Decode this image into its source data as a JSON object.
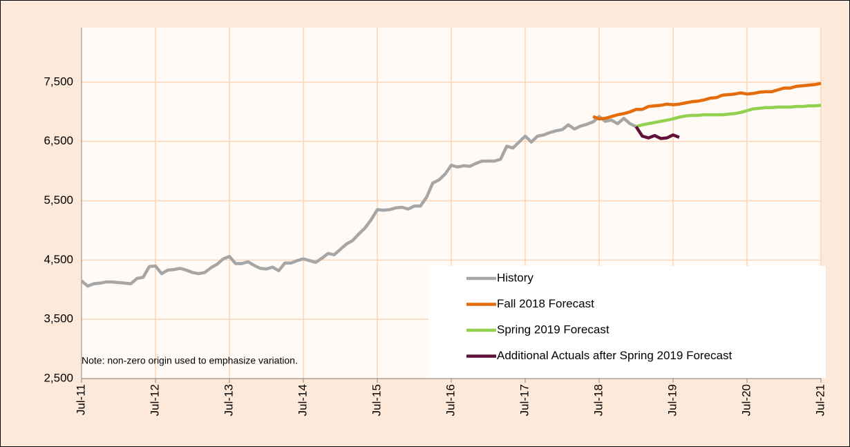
{
  "chart_data": {
    "type": "line",
    "annotation": "Note: non-zero origin used to emphasize variation.",
    "categories": [
      "Jul-11",
      null,
      null,
      null,
      null,
      null,
      null,
      null,
      null,
      null,
      null,
      null,
      "Jul-12",
      null,
      null,
      null,
      null,
      null,
      null,
      null,
      null,
      null,
      null,
      null,
      "Jul-13",
      null,
      null,
      null,
      null,
      null,
      null,
      null,
      null,
      null,
      null,
      null,
      "Jul-14",
      null,
      null,
      null,
      null,
      null,
      null,
      null,
      null,
      null,
      null,
      null,
      "Jul-15",
      null,
      null,
      null,
      null,
      null,
      null,
      null,
      null,
      null,
      null,
      null,
      "Jul-16",
      null,
      null,
      null,
      null,
      null,
      null,
      null,
      null,
      null,
      null,
      null,
      "Jul-17",
      null,
      null,
      null,
      null,
      null,
      null,
      null,
      null,
      null,
      null,
      null,
      "Jul-18",
      null,
      null,
      null,
      null,
      null,
      null,
      null,
      null,
      null,
      null,
      null,
      "Jul-19",
      null,
      null,
      null,
      null,
      null,
      null,
      null,
      null,
      null,
      null,
      null,
      "Jul-20",
      null,
      null,
      null,
      null,
      null,
      null,
      null,
      null,
      null,
      null,
      null,
      "Jul-21"
    ],
    "series": [
      {
        "name": "History",
        "color": "#a6a6a6",
        "values": [
          4150,
          4060,
          4100,
          4110,
          4130,
          4130,
          4120,
          4110,
          4100,
          4190,
          4210,
          4390,
          4400,
          4270,
          4330,
          4340,
          4360,
          4330,
          4290,
          4270,
          4290,
          4370,
          4430,
          4520,
          4560,
          4440,
          4440,
          4470,
          4410,
          4360,
          4350,
          4380,
          4320,
          4450,
          4450,
          4490,
          4520,
          4490,
          4460,
          4530,
          4610,
          4590,
          4680,
          4770,
          4830,
          4940,
          5040,
          5180,
          5350,
          5340,
          5350,
          5380,
          5390,
          5360,
          5410,
          5410,
          5560,
          5800,
          5850,
          5950,
          6100,
          6070,
          6090,
          6080,
          6130,
          6170,
          6170,
          6170,
          6200,
          6420,
          6390,
          6490,
          6590,
          6490,
          6590,
          6610,
          6650,
          6680,
          6700,
          6780,
          6710,
          6760,
          6790,
          6830,
          6920,
          6840,
          6860,
          6800,
          6890,
          6800,
          6750,
          null,
          null,
          null,
          null,
          null,
          null,
          null,
          null,
          null,
          null,
          null,
          null,
          null,
          null,
          null,
          null,
          null,
          null,
          null,
          null,
          null,
          null,
          null,
          null,
          null,
          null,
          null,
          null,
          null,
          null
        ]
      },
      {
        "name": "Fall 2018 Forecast",
        "color": "#e46c0a",
        "values": [
          null,
          null,
          null,
          null,
          null,
          null,
          null,
          null,
          null,
          null,
          null,
          null,
          null,
          null,
          null,
          null,
          null,
          null,
          null,
          null,
          null,
          null,
          null,
          null,
          null,
          null,
          null,
          null,
          null,
          null,
          null,
          null,
          null,
          null,
          null,
          null,
          null,
          null,
          null,
          null,
          null,
          null,
          null,
          null,
          null,
          null,
          null,
          null,
          null,
          null,
          null,
          null,
          null,
          null,
          null,
          null,
          null,
          null,
          null,
          null,
          null,
          null,
          null,
          null,
          null,
          null,
          null,
          null,
          null,
          null,
          null,
          null,
          null,
          null,
          null,
          null,
          null,
          null,
          null,
          null,
          null,
          null,
          null,
          6920,
          6880,
          6890,
          6920,
          6950,
          6970,
          7000,
          7040,
          7040,
          7090,
          7100,
          7110,
          7130,
          7120,
          7130,
          7150,
          7170,
          7180,
          7200,
          7230,
          7240,
          7280,
          7290,
          7300,
          7320,
          7300,
          7310,
          7330,
          7340,
          7340,
          7370,
          7400,
          7400,
          7430,
          7440,
          7450,
          7460,
          7480
        ]
      },
      {
        "name": "Spring 2019 Forecast",
        "color": "#92d050",
        "values": [
          null,
          null,
          null,
          null,
          null,
          null,
          null,
          null,
          null,
          null,
          null,
          null,
          null,
          null,
          null,
          null,
          null,
          null,
          null,
          null,
          null,
          null,
          null,
          null,
          null,
          null,
          null,
          null,
          null,
          null,
          null,
          null,
          null,
          null,
          null,
          null,
          null,
          null,
          null,
          null,
          null,
          null,
          null,
          null,
          null,
          null,
          null,
          null,
          null,
          null,
          null,
          null,
          null,
          null,
          null,
          null,
          null,
          null,
          null,
          null,
          null,
          null,
          null,
          null,
          null,
          null,
          null,
          null,
          null,
          null,
          null,
          null,
          null,
          null,
          null,
          null,
          null,
          null,
          null,
          null,
          null,
          null,
          null,
          null,
          null,
          null,
          null,
          null,
          null,
          null,
          6750,
          6780,
          6800,
          6820,
          6840,
          6860,
          6880,
          6910,
          6930,
          6940,
          6940,
          6950,
          6950,
          6950,
          6950,
          6960,
          6970,
          6990,
          7020,
          7050,
          7060,
          7070,
          7070,
          7080,
          7080,
          7080,
          7090,
          7090,
          7100,
          7100,
          7110
        ]
      },
      {
        "name": "Additional Actuals after Spring 2019 Forecast",
        "color": "#5f0f38",
        "values": [
          null,
          null,
          null,
          null,
          null,
          null,
          null,
          null,
          null,
          null,
          null,
          null,
          null,
          null,
          null,
          null,
          null,
          null,
          null,
          null,
          null,
          null,
          null,
          null,
          null,
          null,
          null,
          null,
          null,
          null,
          null,
          null,
          null,
          null,
          null,
          null,
          null,
          null,
          null,
          null,
          null,
          null,
          null,
          null,
          null,
          null,
          null,
          null,
          null,
          null,
          null,
          null,
          null,
          null,
          null,
          null,
          null,
          null,
          null,
          null,
          null,
          null,
          null,
          null,
          null,
          null,
          null,
          null,
          null,
          null,
          null,
          null,
          null,
          null,
          null,
          null,
          null,
          null,
          null,
          null,
          null,
          null,
          null,
          null,
          null,
          null,
          null,
          null,
          null,
          null,
          6750,
          6590,
          6560,
          6600,
          6550,
          6560,
          6610,
          6570,
          null,
          null,
          null,
          null,
          null,
          null,
          null,
          null,
          null,
          null,
          null,
          null,
          null,
          null,
          null,
          null,
          null,
          null,
          null,
          null,
          null,
          null,
          null
        ]
      }
    ],
    "ylim": [
      2500,
      8420
    ],
    "yticks": [
      {
        "value": 2500,
        "label": "2,500"
      },
      {
        "value": 3500,
        "label": "3,500"
      },
      {
        "value": 4500,
        "label": "4,500"
      },
      {
        "value": 5500,
        "label": "5,500"
      },
      {
        "value": 6500,
        "label": "6,500"
      },
      {
        "value": 7500,
        "label": "7,500"
      }
    ],
    "grid": true,
    "legend": "lower right"
  }
}
